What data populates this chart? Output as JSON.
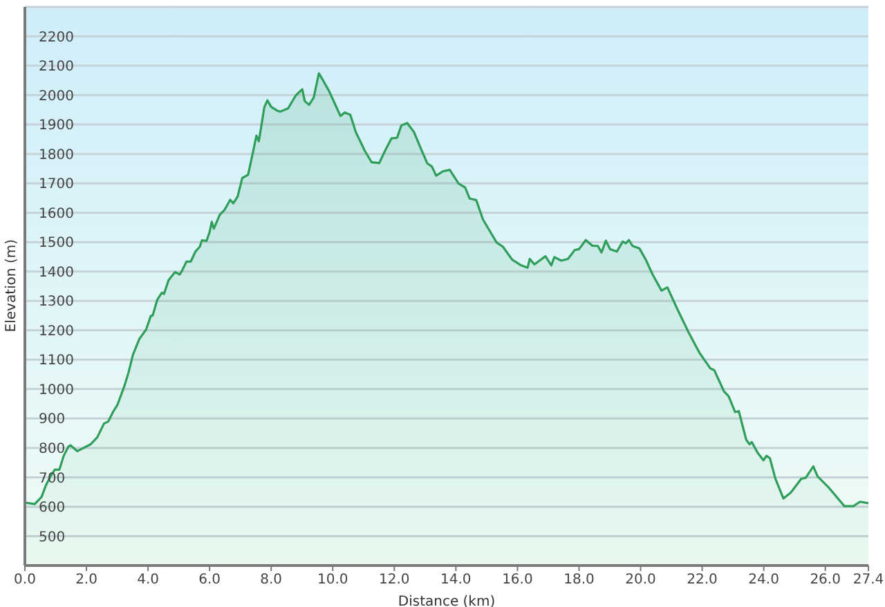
{
  "chart_data": {
    "type": "area",
    "xlabel": "Distance (km)",
    "ylabel": "Elevation (m)",
    "x": [
      0,
      0.32,
      0.54,
      0.68,
      0.83,
      0.97,
      1.12,
      1.26,
      1.41,
      1.48,
      1.7,
      2.13,
      2.35,
      2.57,
      2.71,
      2.86,
      3,
      3.22,
      3.36,
      3.51,
      3.72,
      3.94,
      4.09,
      4.15,
      4.3,
      4.45,
      4.52,
      4.67,
      4.88,
      5.03,
      5.1,
      5.25,
      5.39,
      5.54,
      5.68,
      5.75,
      5.9,
      6,
      6.07,
      6.14,
      6.33,
      6.48,
      6.67,
      6.77,
      6.91,
      7.06,
      7.25,
      7.42,
      7.52,
      7.6,
      7.78,
      7.88,
      8,
      8.22,
      8.3,
      8.55,
      8.8,
      9.01,
      9.09,
      9.23,
      9.38,
      9.55,
      9.67,
      9.88,
      10.25,
      10.39,
      10.57,
      10.75,
      11.04,
      11.26,
      11.51,
      11.7,
      11.91,
      12.09,
      12.23,
      12.42,
      12.64,
      12.86,
      13.07,
      13.22,
      13.36,
      13.58,
      13.8,
      14.09,
      14.3,
      14.45,
      14.66,
      14.88,
      15.1,
      15.32,
      15.53,
      15.83,
      16.12,
      16.33,
      16.4,
      16.55,
      16.91,
      17.1,
      17.2,
      17.42,
      17.64,
      17.86,
      18,
      18.22,
      18.43,
      18.61,
      18.73,
      18.87,
      19.01,
      19.23,
      19.42,
      19.52,
      19.62,
      19.74,
      19.96,
      20.17,
      20.39,
      20.68,
      20.87,
      21.19,
      21.55,
      21.91,
      22.27,
      22.39,
      22.71,
      22.86,
      23.07,
      23.19,
      23.43,
      23.54,
      23.61,
      23.8,
      23.99,
      24.09,
      24.2,
      24.38,
      24.64,
      24.88,
      25.22,
      25.36,
      25.61,
      25.75,
      26.12,
      26.62,
      26.91,
      27.13,
      27.4
    ],
    "series": [
      {
        "color": "#2f9e5a",
        "values": [
          614,
          609,
          633,
          672,
          703,
          726,
          726,
          773,
          804,
          809,
          789,
          812,
          836,
          883,
          890,
          922,
          945,
          1007,
          1054,
          1117,
          1171,
          1203,
          1249,
          1250,
          1304,
          1328,
          1324,
          1371,
          1398,
          1390,
          1402,
          1434,
          1434,
          1468,
          1484,
          1506,
          1504,
          1534,
          1569,
          1546,
          1593,
          1609,
          1644,
          1632,
          1655,
          1718,
          1729,
          1811,
          1862,
          1843,
          1960,
          1982,
          1960,
          1946,
          1944,
          1955,
          1999,
          2020,
          1980,
          1967,
          1991,
          2074,
          2053,
          2014,
          1929,
          1941,
          1933,
          1874,
          1811,
          1772,
          1769,
          1811,
          1853,
          1855,
          1897,
          1905,
          1874,
          1819,
          1768,
          1757,
          1726,
          1741,
          1746,
          1699,
          1686,
          1648,
          1643,
          1577,
          1538,
          1499,
          1484,
          1440,
          1421,
          1413,
          1443,
          1424,
          1452,
          1421,
          1449,
          1437,
          1443,
          1473,
          1476,
          1507,
          1488,
          1487,
          1465,
          1505,
          1476,
          1468,
          1502,
          1496,
          1507,
          1487,
          1479,
          1440,
          1390,
          1335,
          1346,
          1273,
          1195,
          1124,
          1070,
          1065,
          992,
          976,
          922,
          925,
          828,
          812,
          820,
          784,
          758,
          773,
          765,
          695,
          628,
          648,
          695,
          698,
          737,
          703,
          664,
          602,
          602,
          617,
          612
        ]
      }
    ],
    "xlim": [
      0,
      27.4
    ],
    "xticks": [
      {
        "value": 0,
        "label": "0.0"
      },
      {
        "value": 2,
        "label": "2.0"
      },
      {
        "value": 4,
        "label": "4.0"
      },
      {
        "value": 6,
        "label": "6.0"
      },
      {
        "value": 8,
        "label": "8.0"
      },
      {
        "value": 10,
        "label": "10.0"
      },
      {
        "value": 12,
        "label": "12.0"
      },
      {
        "value": 14,
        "label": "14.0"
      },
      {
        "value": 16,
        "label": "16.0"
      },
      {
        "value": 18,
        "label": "18.0"
      },
      {
        "value": 20,
        "label": "20.0"
      },
      {
        "value": 22,
        "label": "22.0"
      },
      {
        "value": 24,
        "label": "24.0"
      },
      {
        "value": 26,
        "label": "26.0"
      },
      {
        "value": 27.4,
        "label": "27.4"
      }
    ],
    "ylim": [
      400,
      2300
    ],
    "yticks": [
      500,
      600,
      700,
      800,
      900,
      1000,
      1100,
      1200,
      1300,
      1400,
      1500,
      1600,
      1700,
      1800,
      1900,
      2000,
      2100,
      2200
    ],
    "grid": "y"
  }
}
